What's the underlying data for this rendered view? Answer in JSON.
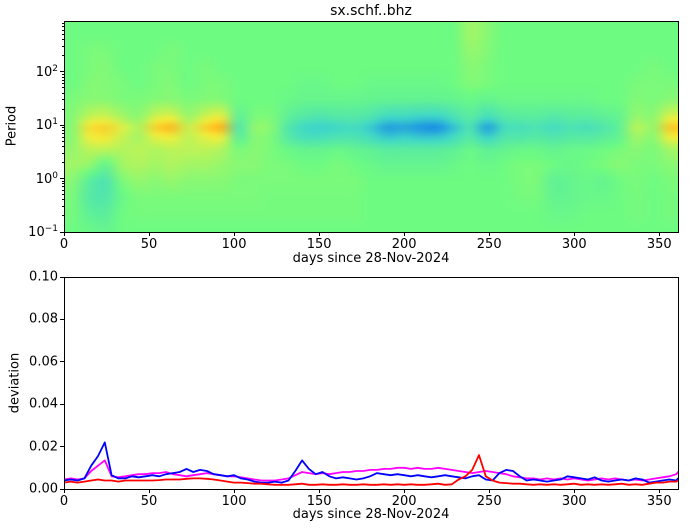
{
  "figure": {
    "background": "#ffffff"
  },
  "chart_data": [
    {
      "type": "heatmap",
      "title": "sx.schf..bhz",
      "xlabel": "days since 28-Nov-2024",
      "ylabel": "Period",
      "x_range": [
        0,
        361
      ],
      "x_ticks": [
        0,
        50,
        100,
        150,
        200,
        250,
        300,
        350
      ],
      "y_scale": "log",
      "y_range": [
        0.1,
        900
      ],
      "y_tick_exponents": [
        2,
        1,
        0,
        -1
      ],
      "legend": "none",
      "grid": false,
      "colormap": {
        "stops": [
          {
            "v": -1.0,
            "color": "#1482EB"
          },
          {
            "v": -0.5,
            "color": "#40D8C8"
          },
          {
            "v": 0.0,
            "color": "#6EFB82"
          },
          {
            "v": 0.5,
            "color": "#F0EE3C"
          },
          {
            "v": 1.0,
            "color": "#FFA014"
          }
        ]
      },
      "x_days": [
        0,
        10,
        20,
        30,
        40,
        50,
        60,
        70,
        80,
        90,
        100,
        110,
        120,
        130,
        140,
        150,
        160,
        170,
        180,
        190,
        200,
        210,
        220,
        230,
        240,
        250,
        260,
        270,
        280,
        290,
        300,
        310,
        320,
        330,
        340,
        350,
        360
      ],
      "period_rows": [
        500,
        250,
        120,
        60,
        30,
        15,
        9,
        6,
        3.5,
        1.8,
        0.9,
        0.45,
        0.22,
        0.11
      ],
      "values": [
        [
          0,
          0,
          0,
          0,
          0,
          0,
          0,
          0,
          0,
          0,
          0,
          0,
          0,
          0,
          0,
          0,
          0,
          0,
          0,
          0,
          0,
          0,
          0,
          0,
          0.2,
          0.1,
          0,
          0,
          0,
          0,
          0,
          0,
          0,
          0,
          0,
          0,
          0
        ],
        [
          0,
          0.05,
          0.05,
          0,
          0,
          0,
          0.05,
          0,
          0,
          0,
          0,
          0,
          0,
          0,
          0,
          0,
          0,
          0,
          0,
          0,
          0,
          0,
          0,
          0,
          0.15,
          0.08,
          0,
          0,
          0,
          0,
          0,
          0,
          0,
          0,
          0,
          0,
          0
        ],
        [
          0,
          0.05,
          0.08,
          0,
          0,
          0.05,
          0.05,
          0,
          0.05,
          0,
          0,
          0,
          0,
          0,
          0,
          0,
          0,
          0,
          0,
          0,
          0,
          0,
          0,
          0,
          0.1,
          0.05,
          0,
          0,
          0,
          0,
          0,
          0,
          0,
          0,
          0,
          0.05,
          0
        ],
        [
          0,
          0.08,
          0.08,
          0.05,
          0,
          0.05,
          0.08,
          0,
          0.05,
          0.05,
          0,
          0,
          0,
          0,
          -0.05,
          -0.05,
          0,
          0,
          -0.05,
          -0.05,
          -0.05,
          -0.05,
          -0.05,
          0,
          0.08,
          0.05,
          0,
          0,
          0,
          0,
          0,
          0,
          0,
          0,
          0.05,
          0.05,
          0.05
        ],
        [
          0.05,
          0.1,
          0.1,
          0.05,
          0.05,
          0.08,
          0.1,
          0.05,
          0.08,
          0.08,
          0,
          0,
          0,
          -0.05,
          -0.08,
          -0.08,
          -0.08,
          -0.08,
          -0.1,
          -0.12,
          -0.12,
          -0.12,
          -0.12,
          -0.1,
          -0.05,
          -0.1,
          -0.05,
          -0.05,
          -0.05,
          -0.05,
          -0.05,
          -0.05,
          0,
          0,
          0.08,
          0.05,
          0.1
        ],
        [
          0.08,
          0.3,
          0.35,
          0.2,
          0.1,
          0.35,
          0.4,
          0.15,
          0.35,
          0.45,
          -0.15,
          0.05,
          0.05,
          -0.15,
          -0.25,
          -0.3,
          -0.25,
          -0.25,
          -0.3,
          -0.45,
          -0.45,
          -0.5,
          -0.5,
          -0.35,
          -0.2,
          -0.4,
          -0.25,
          -0.2,
          -0.2,
          -0.25,
          -0.2,
          -0.2,
          -0.15,
          -0.1,
          0.15,
          0.1,
          0.4
        ],
        [
          0.1,
          0.6,
          0.7,
          0.45,
          0.25,
          0.7,
          0.85,
          0.35,
          0.7,
          0.9,
          -0.3,
          0.15,
          0.1,
          -0.3,
          -0.5,
          -0.55,
          -0.5,
          -0.45,
          -0.6,
          -0.85,
          -0.8,
          -0.9,
          -0.95,
          -0.65,
          -0.35,
          -0.85,
          -0.45,
          -0.4,
          -0.35,
          -0.45,
          -0.35,
          -0.4,
          -0.3,
          -0.15,
          0.3,
          0.15,
          0.75
        ],
        [
          0.1,
          0.5,
          0.55,
          0.35,
          0.2,
          0.45,
          0.5,
          0.3,
          0.45,
          0.5,
          -0.2,
          0.1,
          0.05,
          -0.25,
          -0.4,
          -0.4,
          -0.35,
          -0.35,
          -0.45,
          -0.6,
          -0.55,
          -0.6,
          -0.6,
          -0.45,
          -0.25,
          -0.55,
          -0.3,
          -0.3,
          -0.25,
          -0.3,
          -0.25,
          -0.25,
          -0.2,
          -0.1,
          0.2,
          0.1,
          0.5
        ],
        [
          0.15,
          0.3,
          0.3,
          0.25,
          0.3,
          0.25,
          0.3,
          0.3,
          0.3,
          0.25,
          0.05,
          0.1,
          0.05,
          -0.05,
          -0.1,
          -0.1,
          -0.05,
          -0.1,
          -0.15,
          -0.2,
          -0.2,
          -0.2,
          -0.2,
          -0.15,
          -0.05,
          -0.15,
          -0.1,
          -0.05,
          -0.05,
          -0.1,
          -0.05,
          -0.05,
          0,
          0.05,
          0.1,
          0.05,
          0.2
        ],
        [
          0.2,
          0.15,
          -0.1,
          0.2,
          0.25,
          0.2,
          0.25,
          0.2,
          0.2,
          0.15,
          0.1,
          0.1,
          0.05,
          0.05,
          0,
          0,
          0.05,
          0,
          -0.05,
          -0.1,
          -0.1,
          -0.1,
          -0.1,
          -0.05,
          0,
          -0.05,
          0,
          0.05,
          0.05,
          0,
          -0.05,
          0,
          0.05,
          0.1,
          0.05,
          0.05,
          0.1
        ],
        [
          0.1,
          -0.2,
          -0.35,
          0.05,
          0.15,
          0.1,
          0.15,
          0.1,
          0.1,
          0.1,
          0.05,
          0.05,
          0.05,
          0.05,
          0.05,
          0.05,
          0.05,
          0.05,
          0,
          0,
          0,
          0,
          0,
          0,
          0,
          0,
          0,
          0.05,
          0.05,
          -0.15,
          -0.1,
          -0.05,
          -0.1,
          0,
          0.05,
          0,
          0.05
        ],
        [
          0.05,
          -0.25,
          -0.3,
          -0.05,
          0.05,
          0.05,
          0.05,
          0.05,
          0.05,
          0.05,
          0.05,
          0.05,
          0.03,
          0.03,
          0.03,
          0.03,
          0.03,
          0.03,
          0,
          0,
          0,
          0,
          0,
          0,
          0,
          0,
          0,
          0.03,
          0.03,
          -0.1,
          -0.1,
          -0.05,
          -0.05,
          0,
          0.03,
          0,
          0.03
        ],
        [
          0.03,
          -0.15,
          -0.2,
          0,
          0.03,
          0.03,
          0.03,
          0.03,
          0.03,
          0.03,
          0.03,
          0.03,
          0.03,
          0.03,
          0.03,
          0.03,
          0.03,
          0.03,
          0,
          0,
          0,
          0,
          0,
          0,
          0,
          0,
          0,
          0,
          0,
          -0.05,
          -0.05,
          0,
          0,
          0,
          0.03,
          0,
          0.03
        ],
        [
          0,
          -0.05,
          -0.1,
          0,
          0,
          0,
          0,
          0,
          0,
          0,
          0,
          0,
          0,
          0,
          0,
          0,
          0,
          0,
          0,
          0,
          0,
          0,
          0,
          0,
          0,
          0,
          0,
          0,
          0,
          0,
          0,
          0,
          0,
          0,
          0,
          0,
          0
        ]
      ]
    },
    {
      "type": "line",
      "xlabel": "days since 28-Nov-2024",
      "ylabel": "deviation",
      "x_range": [
        0,
        361
      ],
      "x_ticks": [
        0,
        50,
        100,
        150,
        200,
        250,
        300,
        350
      ],
      "ylim": [
        0,
        0.1
      ],
      "y_ticks": [
        0,
        0.02,
        0.04,
        0.06,
        0.08,
        0.1
      ],
      "legend": "none",
      "grid": false,
      "x_start": 0,
      "x_step": 4,
      "series": [
        {
          "name": "magenta",
          "color": "#FF00FF",
          "values": [
            0.0045,
            0.005,
            0.0045,
            0.005,
            0.0085,
            0.011,
            0.0135,
            0.006,
            0.0055,
            0.006,
            0.0065,
            0.007,
            0.007,
            0.0075,
            0.0075,
            0.008,
            0.007,
            0.0065,
            0.006,
            0.0065,
            0.007,
            0.0075,
            0.007,
            0.0065,
            0.006,
            0.006,
            0.0055,
            0.005,
            0.0045,
            0.004,
            0.004,
            0.004,
            0.0045,
            0.005,
            0.0065,
            0.008,
            0.0075,
            0.007,
            0.0075,
            0.007,
            0.0075,
            0.008,
            0.008,
            0.0085,
            0.0085,
            0.009,
            0.009,
            0.0095,
            0.0095,
            0.01,
            0.01,
            0.0095,
            0.01,
            0.0095,
            0.0095,
            0.01,
            0.0095,
            0.009,
            0.0085,
            0.008,
            0.0075,
            0.008,
            0.0085,
            0.008,
            0.0075,
            0.007,
            0.006,
            0.0055,
            0.005,
            0.005,
            0.0045,
            0.005,
            0.0045,
            0.005,
            0.0045,
            0.005,
            0.0045,
            0.004,
            0.0045,
            0.005,
            0.0045,
            0.005,
            0.0045,
            0.004,
            0.0045,
            0.004,
            0.0045,
            0.005,
            0.0055,
            0.006,
            0.007,
            0.008
          ]
        },
        {
          "name": "blue",
          "color": "#0000FF",
          "values": [
            0.004,
            0.0045,
            0.004,
            0.005,
            0.011,
            0.0155,
            0.022,
            0.0065,
            0.005,
            0.005,
            0.006,
            0.0055,
            0.006,
            0.0065,
            0.006,
            0.007,
            0.0075,
            0.008,
            0.0095,
            0.008,
            0.009,
            0.0085,
            0.007,
            0.0065,
            0.006,
            0.0065,
            0.005,
            0.0045,
            0.0035,
            0.003,
            0.003,
            0.0035,
            0.003,
            0.004,
            0.0085,
            0.0135,
            0.0095,
            0.007,
            0.008,
            0.006,
            0.005,
            0.0055,
            0.005,
            0.0045,
            0.005,
            0.006,
            0.0075,
            0.007,
            0.0065,
            0.007,
            0.0065,
            0.006,
            0.0065,
            0.006,
            0.0055,
            0.006,
            0.0065,
            0.006,
            0.0055,
            0.005,
            0.006,
            0.0065,
            0.0045,
            0.004,
            0.0075,
            0.009,
            0.0085,
            0.006,
            0.004,
            0.0045,
            0.004,
            0.0035,
            0.004,
            0.0045,
            0.006,
            0.0055,
            0.005,
            0.0045,
            0.0055,
            0.004,
            0.0035,
            0.004,
            0.0045,
            0.004,
            0.005,
            0.0045,
            0.003,
            0.0035,
            0.004,
            0.0045,
            0.004,
            0.005
          ]
        },
        {
          "name": "red",
          "color": "#FF0000",
          "values": [
            0.003,
            0.0035,
            0.003,
            0.0035,
            0.004,
            0.0045,
            0.004,
            0.004,
            0.0035,
            0.004,
            0.004,
            0.004,
            0.004,
            0.004,
            0.0042,
            0.0045,
            0.0045,
            0.0045,
            0.0048,
            0.005,
            0.005,
            0.0048,
            0.0045,
            0.004,
            0.0035,
            0.003,
            0.003,
            0.0028,
            0.0025,
            0.0025,
            0.0022,
            0.002,
            0.002,
            0.002,
            0.0022,
            0.0025,
            0.002,
            0.002,
            0.0022,
            0.002,
            0.002,
            0.0022,
            0.002,
            0.002,
            0.0022,
            0.002,
            0.002,
            0.0022,
            0.002,
            0.0022,
            0.002,
            0.0022,
            0.002,
            0.002,
            0.0022,
            0.0025,
            0.002,
            0.0022,
            0.0045,
            0.006,
            0.009,
            0.016,
            0.006,
            0.004,
            0.003,
            0.0028,
            0.0025,
            0.0025,
            0.0022,
            0.002,
            0.0022,
            0.002,
            0.0022,
            0.002,
            0.0022,
            0.0025,
            0.002,
            0.0022,
            0.002,
            0.0022,
            0.002,
            0.0022,
            0.0025,
            0.002,
            0.0022,
            0.002,
            0.0025,
            0.003,
            0.003,
            0.0035,
            0.0035,
            0.004
          ]
        }
      ]
    }
  ]
}
